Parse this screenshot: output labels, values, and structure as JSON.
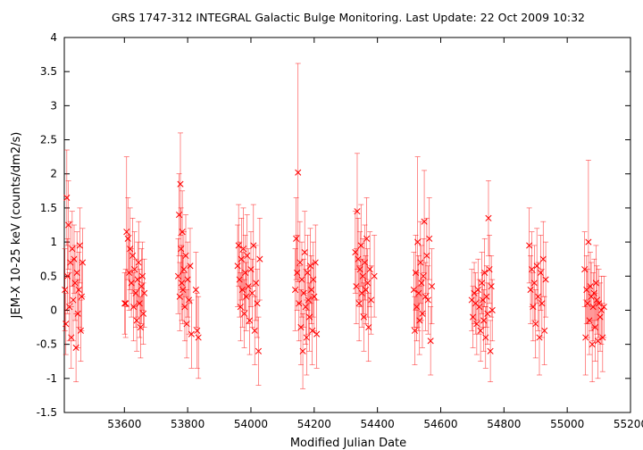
{
  "chart_data": {
    "type": "scatter",
    "title": "GRS 1747-312   INTEGRAL Galactic Bulge Monitoring.  Last Update: 22 Oct 2009 10:32",
    "xlabel": "Modified Julian Date",
    "ylabel": "JEM-X 10-25 keV (counts/dm2/s)",
    "xlim": [
      53410,
      55200
    ],
    "ylim": [
      -1.5,
      4
    ],
    "xticks": [
      53600,
      53800,
      54000,
      54200,
      54400,
      54600,
      54800,
      55000,
      55200
    ],
    "xtick_labels": [
      "53600",
      "53800",
      "54000",
      "54200",
      "54400",
      "54600",
      "54800",
      "55000",
      "55200"
    ],
    "yticks": [
      -1.5,
      -1,
      -0.5,
      0,
      0.5,
      1,
      1.5,
      2,
      2.5,
      3,
      3.5,
      4
    ],
    "ytick_labels": [
      "-1.5",
      "-1",
      "-0.5",
      "0",
      "0.5",
      "1",
      "1.5",
      "2",
      "2.5",
      "3",
      "3.5",
      "4"
    ],
    "grid": false,
    "legend": "none",
    "marker": "x",
    "color": "#ff0000",
    "error_bars": true,
    "series": [
      {
        "points": [
          {
            "x": 53412,
            "y": 0.3,
            "err": 0.6
          },
          {
            "x": 53415,
            "y": -0.2,
            "err": 0.45
          },
          {
            "x": 53418,
            "y": 1.65,
            "err": 0.7
          },
          {
            "x": 53420,
            "y": 0.5,
            "err": 0.55
          },
          {
            "x": 53423,
            "y": 1.25,
            "err": 0.65
          },
          {
            "x": 53426,
            "y": 0.05,
            "err": 0.5
          },
          {
            "x": 53429,
            "y": 0.7,
            "err": 0.6
          },
          {
            "x": 53432,
            "y": -0.4,
            "err": 0.45
          },
          {
            "x": 53435,
            "y": 0.9,
            "err": 0.55
          },
          {
            "x": 53438,
            "y": 0.15,
            "err": 0.6
          },
          {
            "x": 53441,
            "y": 0.75,
            "err": 0.5
          },
          {
            "x": 53444,
            "y": 0.4,
            "err": 0.55
          },
          {
            "x": 53447,
            "y": -0.55,
            "err": 0.5
          },
          {
            "x": 53450,
            "y": 0.55,
            "err": 0.6
          },
          {
            "x": 53453,
            "y": -0.05,
            "err": 0.5
          },
          {
            "x": 53456,
            "y": 0.3,
            "err": 0.55
          },
          {
            "x": 53459,
            "y": 0.95,
            "err": 0.55
          },
          {
            "x": 53462,
            "y": -0.3,
            "err": 0.45
          },
          {
            "x": 53465,
            "y": 0.2,
            "err": 0.5
          },
          {
            "x": 53468,
            "y": 0.7,
            "err": 0.5
          },
          {
            "x": 53601,
            "y": 0.1,
            "err": 0.45
          },
          {
            "x": 53604,
            "y": 0.1,
            "err": 0.5
          },
          {
            "x": 53607,
            "y": 1.15,
            "err": 1.1
          },
          {
            "x": 53611,
            "y": 1.05,
            "err": 0.6
          },
          {
            "x": 53615,
            "y": 0.55,
            "err": 0.55
          },
          {
            "x": 53618,
            "y": 0.9,
            "err": 0.6
          },
          {
            "x": 53622,
            "y": 0.4,
            "err": 0.5
          },
          {
            "x": 53626,
            "y": 0.8,
            "err": 0.55
          },
          {
            "x": 53629,
            "y": 0.05,
            "err": 0.5
          },
          {
            "x": 53632,
            "y": 0.6,
            "err": 0.55
          },
          {
            "x": 53636,
            "y": 0.25,
            "err": 0.5
          },
          {
            "x": 53639,
            "y": -0.15,
            "err": 0.45
          },
          {
            "x": 53642,
            "y": 0.45,
            "err": 0.55
          },
          {
            "x": 53645,
            "y": 0.7,
            "err": 0.6
          },
          {
            "x": 53648,
            "y": 0.1,
            "err": 0.5
          },
          {
            "x": 53651,
            "y": -0.25,
            "err": 0.45
          },
          {
            "x": 53654,
            "y": 0.35,
            "err": 0.55
          },
          {
            "x": 53657,
            "y": 0.5,
            "err": 0.5
          },
          {
            "x": 53660,
            "y": -0.05,
            "err": 0.45
          },
          {
            "x": 53663,
            "y": 0.25,
            "err": 0.5
          },
          {
            "x": 53770,
            "y": 0.5,
            "err": 0.55
          },
          {
            "x": 53773,
            "y": 1.4,
            "err": 0.6
          },
          {
            "x": 53775,
            "y": 0.2,
            "err": 0.5
          },
          {
            "x": 53777,
            "y": 1.85,
            "err": 0.75
          },
          {
            "x": 53779,
            "y": 0.9,
            "err": 0.6
          },
          {
            "x": 53781,
            "y": 0.4,
            "err": 0.55
          },
          {
            "x": 53783,
            "y": 1.15,
            "err": 0.6
          },
          {
            "x": 53785,
            "y": 0.3,
            "err": 0.5
          },
          {
            "x": 53788,
            "y": 0.6,
            "err": 0.55
          },
          {
            "x": 53791,
            "y": 0.05,
            "err": 0.5
          },
          {
            "x": 53794,
            "y": 0.8,
            "err": 0.6
          },
          {
            "x": 53797,
            "y": -0.2,
            "err": 0.5
          },
          {
            "x": 53800,
            "y": 0.45,
            "err": 0.55
          },
          {
            "x": 53804,
            "y": 0.15,
            "err": 0.5
          },
          {
            "x": 53808,
            "y": 0.65,
            "err": 0.55
          },
          {
            "x": 53812,
            "y": -0.35,
            "err": 0.5
          },
          {
            "x": 53826,
            "y": 0.3,
            "err": 0.55
          },
          {
            "x": 53830,
            "y": -0.3,
            "err": 0.55
          },
          {
            "x": 53834,
            "y": -0.4,
            "err": 0.6
          },
          {
            "x": 53958,
            "y": 0.65,
            "err": 0.6
          },
          {
            "x": 53961,
            "y": 0.95,
            "err": 0.6
          },
          {
            "x": 53964,
            "y": 0.45,
            "err": 0.55
          },
          {
            "x": 53967,
            "y": 0.05,
            "err": 0.5
          },
          {
            "x": 53970,
            "y": 0.75,
            "err": 0.6
          },
          {
            "x": 53973,
            "y": 0.3,
            "err": 0.55
          },
          {
            "x": 53976,
            "y": 0.9,
            "err": 0.6
          },
          {
            "x": 53979,
            "y": -0.05,
            "err": 0.5
          },
          {
            "x": 53982,
            "y": 0.55,
            "err": 0.55
          },
          {
            "x": 53985,
            "y": 0.2,
            "err": 0.5
          },
          {
            "x": 53988,
            "y": 0.8,
            "err": 0.6
          },
          {
            "x": 53992,
            "y": 0.35,
            "err": 0.55
          },
          {
            "x": 53996,
            "y": -0.15,
            "err": 0.5
          },
          {
            "x": 54000,
            "y": 0.6,
            "err": 0.55
          },
          {
            "x": 54004,
            "y": 0.25,
            "err": 0.5
          },
          {
            "x": 54008,
            "y": 0.95,
            "err": 0.6
          },
          {
            "x": 54012,
            "y": -0.3,
            "err": 0.5
          },
          {
            "x": 54016,
            "y": 0.4,
            "err": 0.55
          },
          {
            "x": 54020,
            "y": 0.1,
            "err": 0.5
          },
          {
            "x": 54024,
            "y": -0.6,
            "err": 0.5
          },
          {
            "x": 54028,
            "y": 0.75,
            "err": 0.6
          },
          {
            "x": 54140,
            "y": 0.3,
            "err": 0.6
          },
          {
            "x": 54143,
            "y": 1.05,
            "err": 0.6
          },
          {
            "x": 54146,
            "y": 0.55,
            "err": 0.55
          },
          {
            "x": 54149,
            "y": 2.02,
            "err": 1.6
          },
          {
            "x": 54152,
            "y": 0.1,
            "err": 0.55
          },
          {
            "x": 54155,
            "y": 0.7,
            "err": 0.6
          },
          {
            "x": 54158,
            "y": -0.25,
            "err": 0.55
          },
          {
            "x": 54161,
            "y": 0.45,
            "err": 0.55
          },
          {
            "x": 54164,
            "y": -0.6,
            "err": 0.55
          },
          {
            "x": 54167,
            "y": 0.25,
            "err": 0.5
          },
          {
            "x": 54170,
            "y": 0.85,
            "err": 0.6
          },
          {
            "x": 54173,
            "y": 0.05,
            "err": 0.55
          },
          {
            "x": 54176,
            "y": -0.4,
            "err": 0.55
          },
          {
            "x": 54179,
            "y": 0.55,
            "err": 0.55
          },
          {
            "x": 54182,
            "y": 0.15,
            "err": 0.5
          },
          {
            "x": 54185,
            "y": -0.1,
            "err": 0.5
          },
          {
            "x": 54188,
            "y": 0.65,
            "err": 0.55
          },
          {
            "x": 54191,
            "y": 0.3,
            "err": 0.5
          },
          {
            "x": 54194,
            "y": -0.3,
            "err": 0.5
          },
          {
            "x": 54197,
            "y": 0.45,
            "err": 0.55
          },
          {
            "x": 54200,
            "y": 0.2,
            "err": 0.5
          },
          {
            "x": 54204,
            "y": 0.7,
            "err": 0.55
          },
          {
            "x": 54208,
            "y": -0.35,
            "err": 0.5
          },
          {
            "x": 54330,
            "y": 0.85,
            "err": 0.6
          },
          {
            "x": 54333,
            "y": 0.35,
            "err": 0.55
          },
          {
            "x": 54336,
            "y": 1.45,
            "err": 0.85
          },
          {
            "x": 54339,
            "y": 0.75,
            "err": 0.6
          },
          {
            "x": 54342,
            "y": 0.1,
            "err": 0.55
          },
          {
            "x": 54345,
            "y": 0.6,
            "err": 0.55
          },
          {
            "x": 54348,
            "y": 0.95,
            "err": 0.6
          },
          {
            "x": 54351,
            "y": 0.25,
            "err": 0.5
          },
          {
            "x": 54354,
            "y": 0.5,
            "err": 0.55
          },
          {
            "x": 54357,
            "y": -0.1,
            "err": 0.5
          },
          {
            "x": 54360,
            "y": 0.7,
            "err": 0.55
          },
          {
            "x": 54363,
            "y": 0.3,
            "err": 0.5
          },
          {
            "x": 54366,
            "y": 1.05,
            "err": 0.6
          },
          {
            "x": 54369,
            "y": 0.4,
            "err": 0.5
          },
          {
            "x": 54372,
            "y": -0.25,
            "err": 0.5
          },
          {
            "x": 54376,
            "y": 0.6,
            "err": 0.55
          },
          {
            "x": 54380,
            "y": 0.15,
            "err": 0.5
          },
          {
            "x": 54390,
            "y": 0.5,
            "err": 0.6
          },
          {
            "x": 54515,
            "y": 0.3,
            "err": 0.55
          },
          {
            "x": 54518,
            "y": -0.3,
            "err": 0.5
          },
          {
            "x": 54521,
            "y": 0.55,
            "err": 0.55
          },
          {
            "x": 54524,
            "y": 0.05,
            "err": 0.5
          },
          {
            "x": 54527,
            "y": 1.0,
            "err": 1.25
          },
          {
            "x": 54530,
            "y": 0.25,
            "err": 0.55
          },
          {
            "x": 54533,
            "y": -0.15,
            "err": 0.5
          },
          {
            "x": 54536,
            "y": 0.7,
            "err": 0.6
          },
          {
            "x": 54539,
            "y": 0.4,
            "err": 0.55
          },
          {
            "x": 54542,
            "y": -0.05,
            "err": 0.5
          },
          {
            "x": 54545,
            "y": 0.5,
            "err": 0.55
          },
          {
            "x": 54548,
            "y": 1.3,
            "err": 0.75
          },
          {
            "x": 54552,
            "y": 0.2,
            "err": 0.5
          },
          {
            "x": 54556,
            "y": 0.8,
            "err": 0.55
          },
          {
            "x": 54560,
            "y": 0.15,
            "err": 0.5
          },
          {
            "x": 54564,
            "y": 1.05,
            "err": 0.6
          },
          {
            "x": 54568,
            "y": -0.45,
            "err": 0.5
          },
          {
            "x": 54572,
            "y": 0.35,
            "err": 0.55
          },
          {
            "x": 54698,
            "y": 0.15,
            "err": 0.45
          },
          {
            "x": 54702,
            "y": -0.1,
            "err": 0.45
          },
          {
            "x": 54706,
            "y": 0.25,
            "err": 0.45
          },
          {
            "x": 54710,
            "y": 0.1,
            "err": 0.45
          },
          {
            "x": 54714,
            "y": -0.2,
            "err": 0.45
          },
          {
            "x": 54718,
            "y": 0.3,
            "err": 0.45
          },
          {
            "x": 54722,
            "y": 0.05,
            "err": 0.4
          },
          {
            "x": 54726,
            "y": -0.3,
            "err": 0.45
          },
          {
            "x": 54730,
            "y": 0.4,
            "err": 0.45
          },
          {
            "x": 54733,
            "y": 0.15,
            "err": 0.4
          },
          {
            "x": 54736,
            "y": -0.15,
            "err": 0.45
          },
          {
            "x": 54739,
            "y": 0.55,
            "err": 0.5
          },
          {
            "x": 54742,
            "y": -0.4,
            "err": 0.45
          },
          {
            "x": 54745,
            "y": 0.2,
            "err": 0.45
          },
          {
            "x": 54748,
            "y": -0.05,
            "err": 0.45
          },
          {
            "x": 54751,
            "y": 1.35,
            "err": 0.55
          },
          {
            "x": 54754,
            "y": 0.6,
            "err": 0.5
          },
          {
            "x": 54757,
            "y": -0.6,
            "err": 0.45
          },
          {
            "x": 54760,
            "y": 0.35,
            "err": 0.45
          },
          {
            "x": 54763,
            "y": 0.0,
            "err": 0.45
          },
          {
            "x": 54880,
            "y": 0.95,
            "err": 0.55
          },
          {
            "x": 54884,
            "y": 0.3,
            "err": 0.5
          },
          {
            "x": 54888,
            "y": 0.6,
            "err": 0.55
          },
          {
            "x": 54892,
            "y": 0.05,
            "err": 0.5
          },
          {
            "x": 54896,
            "y": 0.4,
            "err": 0.55
          },
          {
            "x": 54900,
            "y": -0.2,
            "err": 0.5
          },
          {
            "x": 54904,
            "y": 0.65,
            "err": 0.55
          },
          {
            "x": 54908,
            "y": 0.2,
            "err": 0.5
          },
          {
            "x": 54912,
            "y": -0.4,
            "err": 0.55
          },
          {
            "x": 54916,
            "y": 0.55,
            "err": 0.55
          },
          {
            "x": 54920,
            "y": 0.1,
            "err": 0.5
          },
          {
            "x": 54924,
            "y": 0.75,
            "err": 0.55
          },
          {
            "x": 54928,
            "y": -0.3,
            "err": 0.5
          },
          {
            "x": 54932,
            "y": 0.45,
            "err": 0.55
          },
          {
            "x": 55055,
            "y": 0.6,
            "err": 0.55
          },
          {
            "x": 55058,
            "y": -0.4,
            "err": 0.55
          },
          {
            "x": 55061,
            "y": 0.3,
            "err": 0.5
          },
          {
            "x": 55064,
            "y": 0.1,
            "err": 0.5
          },
          {
            "x": 55067,
            "y": 1.0,
            "err": 1.2
          },
          {
            "x": 55070,
            "y": -0.15,
            "err": 0.5
          },
          {
            "x": 55073,
            "y": 0.35,
            "err": 0.5
          },
          {
            "x": 55076,
            "y": 0.2,
            "err": 0.5
          },
          {
            "x": 55079,
            "y": -0.5,
            "err": 0.55
          },
          {
            "x": 55082,
            "y": 0.05,
            "err": 0.5
          },
          {
            "x": 55085,
            "y": 0.25,
            "err": 0.5
          },
          {
            "x": 55088,
            "y": -0.25,
            "err": 0.5
          },
          {
            "x": 55091,
            "y": 0.4,
            "err": 0.55
          },
          {
            "x": 55094,
            "y": 0.15,
            "err": 0.5
          },
          {
            "x": 55097,
            "y": -0.45,
            "err": 0.55
          },
          {
            "x": 55100,
            "y": 0.1,
            "err": 0.5
          },
          {
            "x": 55104,
            "y": -0.1,
            "err": 0.5
          },
          {
            "x": 55108,
            "y": 0.0,
            "err": 0.5
          },
          {
            "x": 55112,
            "y": -0.4,
            "err": 0.5
          },
          {
            "x": 55116,
            "y": 0.05,
            "err": 0.45
          }
        ]
      }
    ]
  }
}
